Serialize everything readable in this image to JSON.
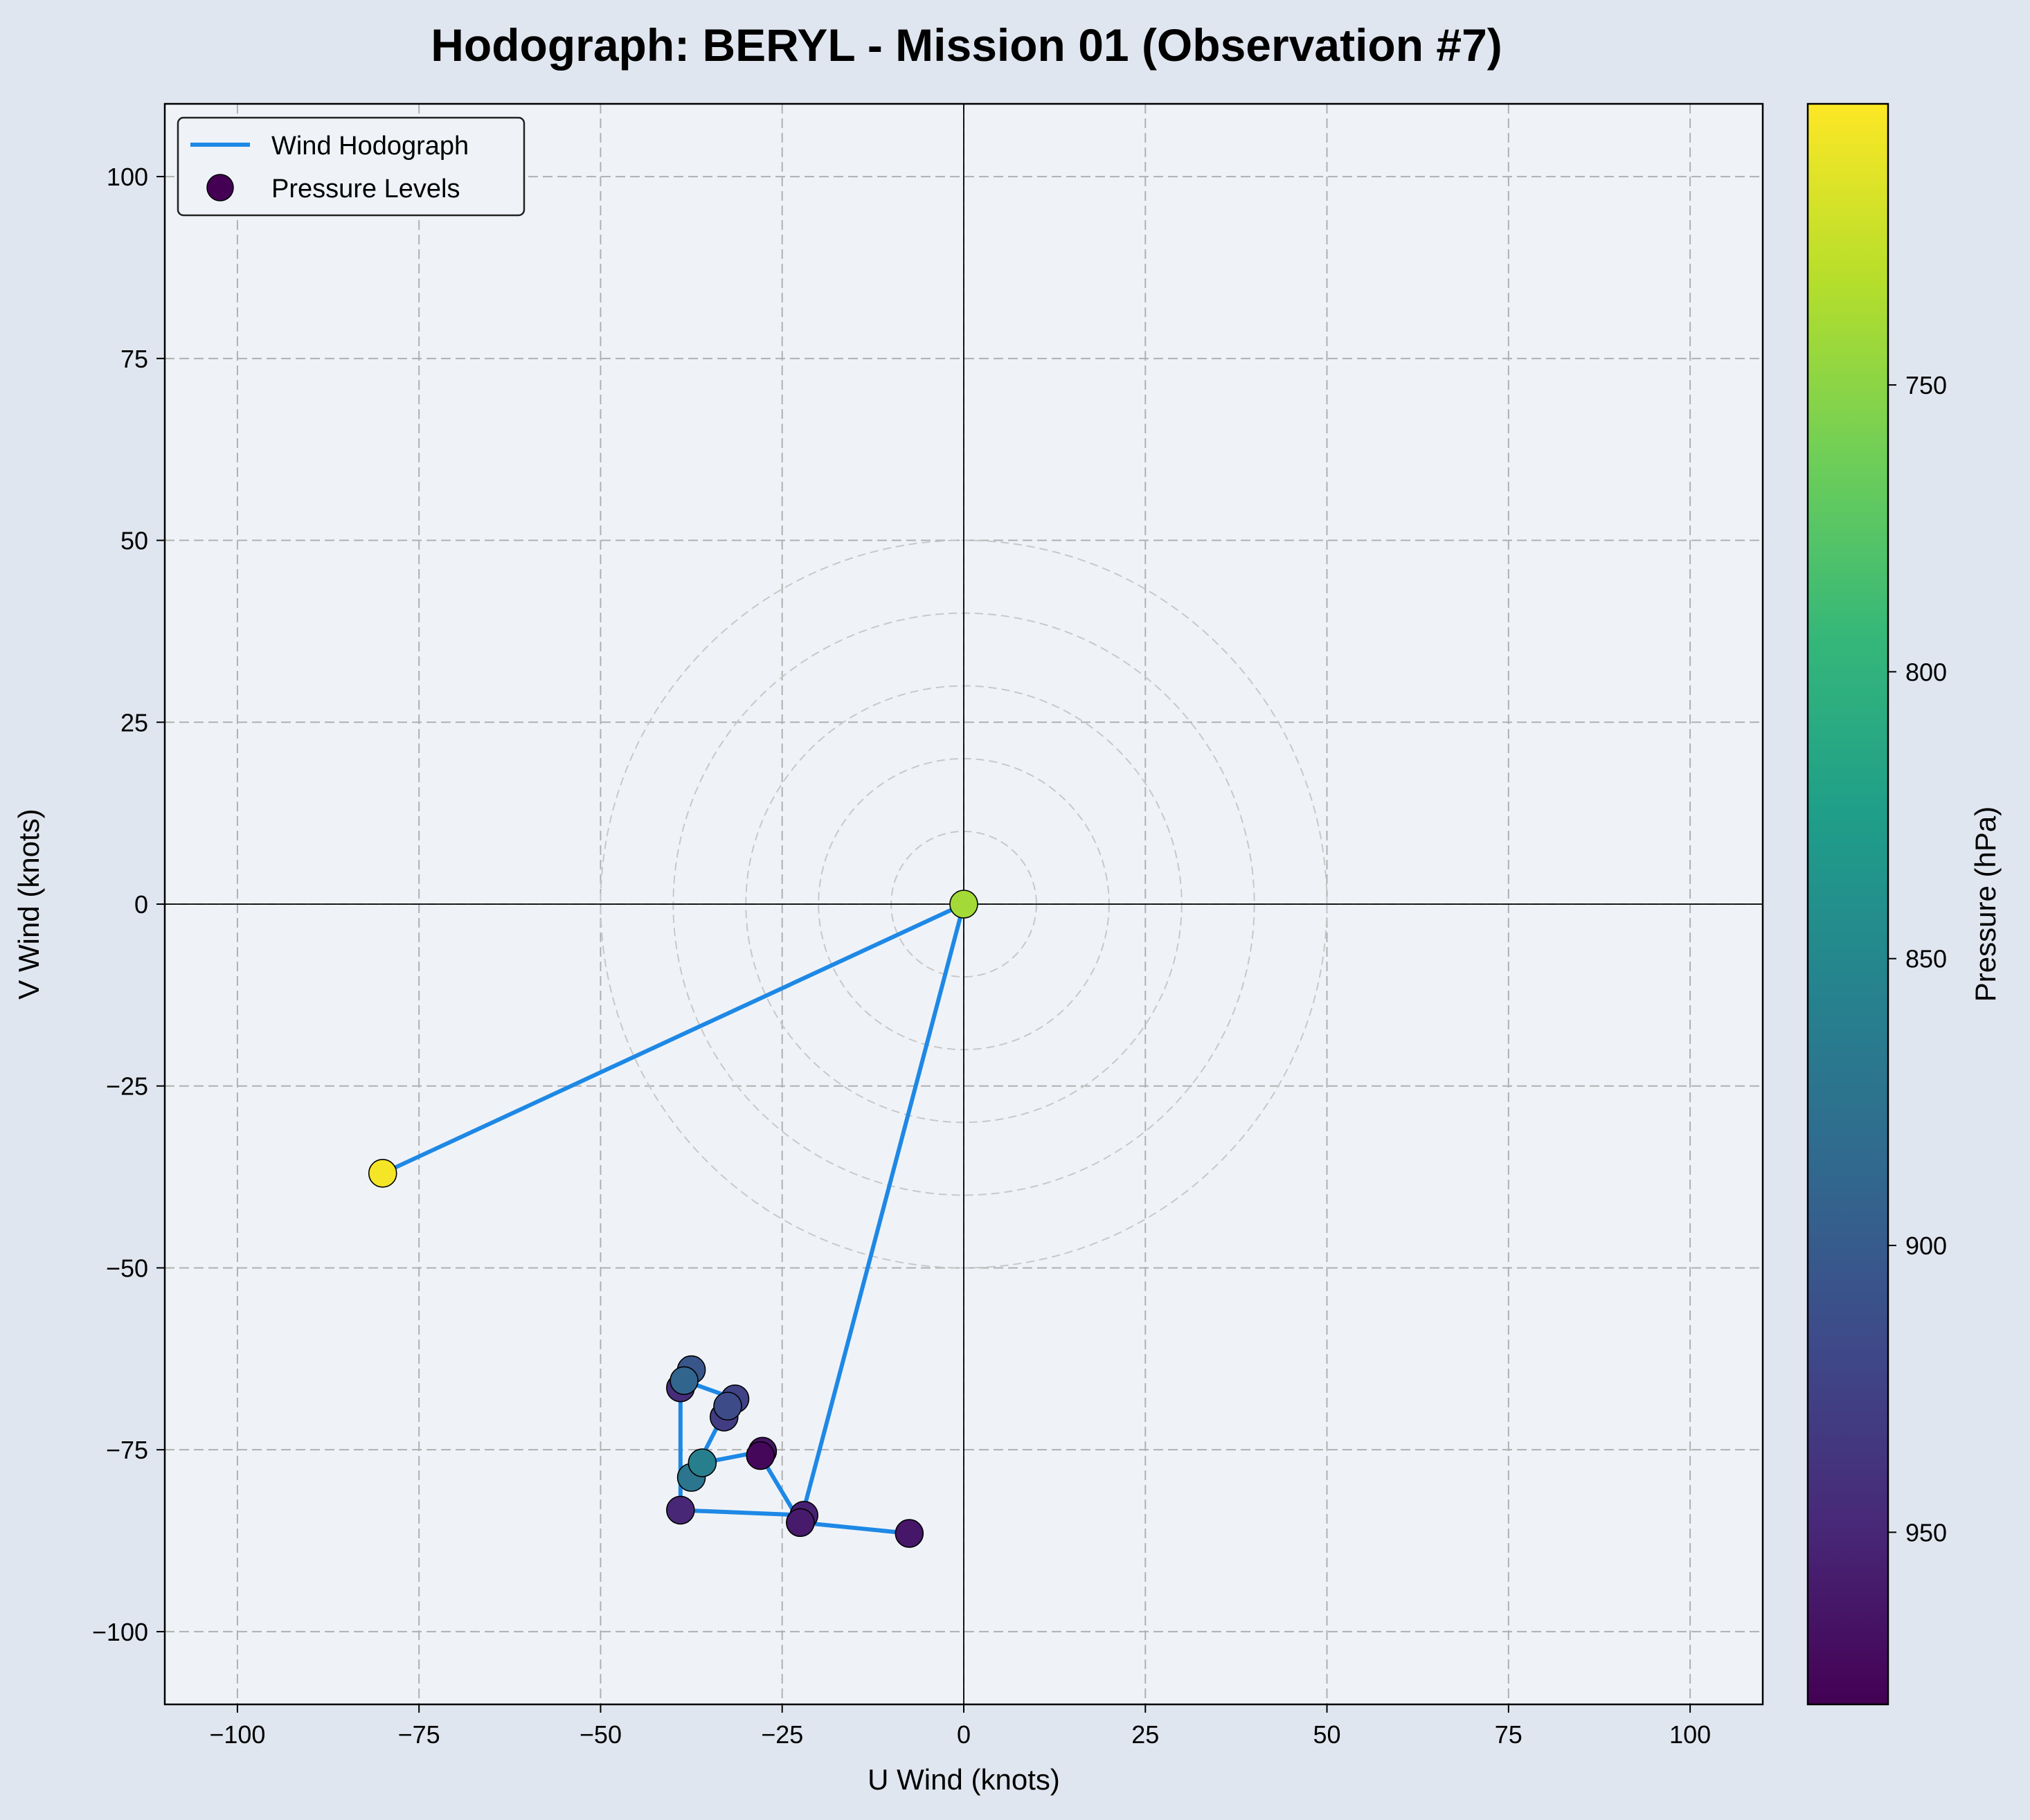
{
  "title": "Hodograph: BERYL - Mission 01 (Observation #7)",
  "colors": {
    "page_background": "#e0e6ef",
    "plot_background": "#eff3f8",
    "line": "#1e88e5",
    "viridis": [
      "#440154",
      "#482878",
      "#3e4989",
      "#31688e",
      "#26828e",
      "#1f9e89",
      "#35b779",
      "#6ece58",
      "#b5de2b",
      "#fde725"
    ]
  },
  "chart_data": {
    "type": "scatter",
    "title": "Hodograph: BERYL - Mission 01 (Observation #7)",
    "xlabel": "U Wind (knots)",
    "ylabel": "V Wind (knots)",
    "xlim": [
      -110,
      110
    ],
    "ylim": [
      -110,
      110
    ],
    "xticks": [
      -100,
      -75,
      -50,
      -25,
      0,
      25,
      50,
      75,
      100
    ],
    "yticks": [
      -100,
      -75,
      -50,
      -25,
      0,
      25,
      50,
      75,
      100
    ],
    "tick_labels": [
      "−100",
      "−75",
      "−50",
      "−25",
      "0",
      "25",
      "50",
      "75",
      "100"
    ],
    "grid": true,
    "range_rings": [
      10,
      20,
      30,
      40,
      50
    ],
    "legend": {
      "position": "upper-left",
      "entries": [
        {
          "label": "Wind Hodograph",
          "kind": "line"
        },
        {
          "label": "Pressure Levels",
          "kind": "marker"
        }
      ]
    },
    "colorbar": {
      "label": "Pressure (hPa)",
      "range": [
        980,
        701
      ],
      "reversed": true,
      "ticks": [
        750,
        800,
        850,
        900,
        950
      ]
    },
    "series": [
      {
        "name": "Wind Hodograph",
        "points": [
          {
            "u": -7.5,
            "v": -86.5,
            "p": 963
          },
          {
            "u": -22.5,
            "v": -85.0,
            "p": 958
          },
          {
            "u": -22.0,
            "v": -84.0,
            "p": 955
          },
          {
            "u": -39.0,
            "v": -83.3,
            "p": 950
          },
          {
            "u": -39.0,
            "v": -66.5,
            "p": 945
          },
          {
            "u": -37.5,
            "v": -64.0,
            "p": 905
          },
          {
            "u": -38.5,
            "v": -65.5,
            "p": 890
          },
          {
            "u": -31.5,
            "v": -68.0,
            "p": 925
          },
          {
            "u": -33.0,
            "v": -70.5,
            "p": 930
          },
          {
            "u": -32.5,
            "v": -69.0,
            "p": 915
          },
          {
            "u": -37.5,
            "v": -78.8,
            "p": 870
          },
          {
            "u": -36.0,
            "v": -76.8,
            "p": 860
          },
          {
            "u": -27.7,
            "v": -75.2,
            "p": 965
          },
          {
            "u": -28.0,
            "v": -75.8,
            "p": 975
          },
          {
            "u": -22.5,
            "v": -85.0,
            "p": 960
          },
          {
            "u": 0.0,
            "v": 0.0,
            "p": 740
          },
          {
            "u": -80.0,
            "v": -37.0,
            "p": 705
          }
        ]
      }
    ]
  }
}
